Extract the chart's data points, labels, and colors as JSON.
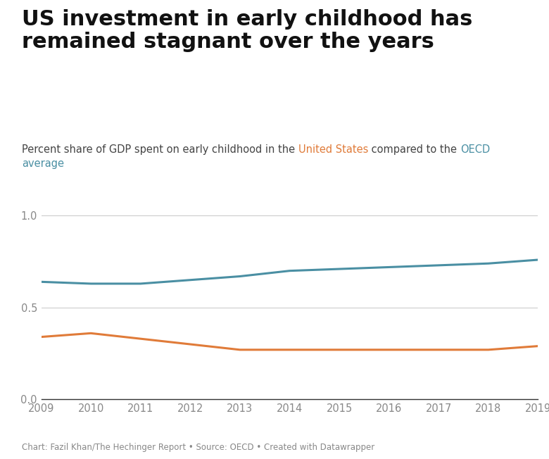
{
  "title": "US investment in early childhood has\nremained stagnant over the years",
  "years": [
    2009,
    2010,
    2011,
    2012,
    2013,
    2014,
    2015,
    2016,
    2017,
    2018,
    2019
  ],
  "us_values": [
    0.34,
    0.36,
    0.33,
    0.3,
    0.27,
    0.27,
    0.27,
    0.27,
    0.27,
    0.27,
    0.29
  ],
  "oecd_values": [
    0.64,
    0.63,
    0.63,
    0.65,
    0.67,
    0.7,
    0.71,
    0.72,
    0.73,
    0.74,
    0.76
  ],
  "us_color": "#E07B39",
  "oecd_color": "#4A8FA3",
  "background_color": "#FFFFFF",
  "ylim": [
    0.0,
    1.1
  ],
  "yticks": [
    0.0,
    0.5,
    1.0
  ],
  "ytick_labels": [
    "0.0",
    "0.5",
    "1.0"
  ],
  "footnote": "Chart: Fazil Khan/The Hechinger Report • Source: OECD • Created with Datawrapper",
  "line_width": 2.2,
  "subtitle_plain": "Percent share of GDP spent on early childhood in the ",
  "subtitle_us": "United States",
  "subtitle_mid": " compared to the ",
  "subtitle_oecd": "OECD",
  "subtitle_end": "average",
  "subtitle_plain_color": "#444444",
  "subtitle_us_color": "#E07B39",
  "subtitle_oecd_color": "#4A8FA3",
  "title_fontsize": 22,
  "subtitle_fontsize": 10.5,
  "tick_fontsize": 10.5,
  "footnote_fontsize": 8.5,
  "title_color": "#111111",
  "tick_color": "#888888",
  "grid_color": "#CCCCCC",
  "footnote_color": "#888888"
}
